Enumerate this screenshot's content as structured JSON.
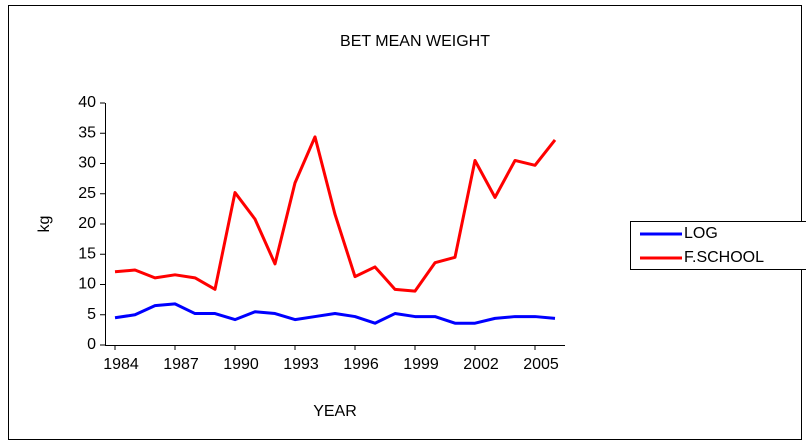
{
  "chart_data": {
    "type": "line",
    "title": "BET MEAN WEIGHT",
    "x_label": "YEAR",
    "y_label": "kg",
    "x": [
      1984,
      1985,
      1986,
      1987,
      1988,
      1989,
      1990,
      1991,
      1992,
      1993,
      1994,
      1995,
      1996,
      1997,
      1998,
      1999,
      2000,
      2001,
      2002,
      2003,
      2004,
      2005,
      2006
    ],
    "series": [
      {
        "name": "LOG",
        "color": "#0000ff",
        "values": [
          4.5,
          5.0,
          6.5,
          6.8,
          5.2,
          5.2,
          4.2,
          5.5,
          5.2,
          4.2,
          4.7,
          5.2,
          4.7,
          3.6,
          5.2,
          4.7,
          4.7,
          3.6,
          3.6,
          4.4,
          4.7,
          4.7,
          4.4
        ]
      },
      {
        "name": "F.SCHOOL",
        "color": "#ff0000",
        "values": [
          12.1,
          12.4,
          11.1,
          11.6,
          11.1,
          9.2,
          25.2,
          20.8,
          13.4,
          26.8,
          34.4,
          21.6,
          11.3,
          12.9,
          9.2,
          8.9,
          13.6,
          14.5,
          30.5,
          24.4,
          30.5,
          29.7,
          33.9
        ]
      }
    ],
    "xlim": [
      1983.5,
      2006.5
    ],
    "xticks": [
      1984,
      1987,
      1990,
      1993,
      1996,
      1999,
      2002,
      2005
    ],
    "ylim": [
      0,
      40
    ],
    "yticks": [
      0,
      5,
      10,
      15,
      20,
      25,
      30,
      35,
      40
    ],
    "grid": false,
    "legend": "right"
  }
}
